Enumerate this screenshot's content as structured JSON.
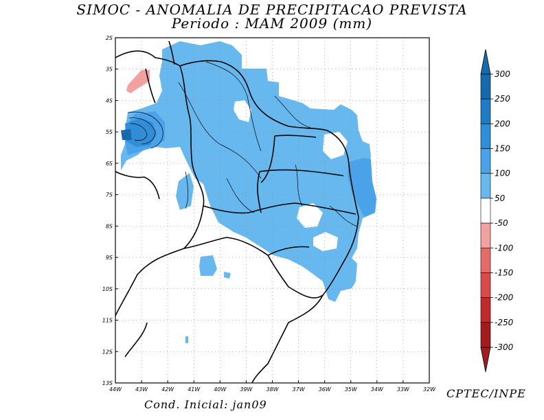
{
  "header": {
    "title": "SIMOC -  ANOMALIA DE PRECIPITACAO PREVISTA",
    "subtitle": "Periodo : MAM 2009 (mm)"
  },
  "footer": {
    "initial_condition": "Cond. Inicial: jan09",
    "credit": "CPTEC/INPE"
  },
  "chart_data": {
    "type": "heatmap",
    "title": "SIMOC -  ANOMALIA DE PRECIPITACAO PREVISTA",
    "subtitle": "Periodo : MAM 2009 (mm)",
    "x_ticks": [
      "44W",
      "43W",
      "42W",
      "41W",
      "40W",
      "39W",
      "38W",
      "37W",
      "36W",
      "35W",
      "34W",
      "33W",
      "32W"
    ],
    "y_ticks": [
      "2S",
      "3S",
      "4S",
      "5S",
      "6S",
      "7S",
      "8S",
      "9S",
      "10S",
      "11S",
      "12S",
      "13S"
    ],
    "xlim": [
      -44,
      -32
    ],
    "ylim": [
      -13,
      -2
    ],
    "grid": true,
    "colorbar": {
      "levels": [
        "-300",
        "-250",
        "-200",
        "-150",
        "-100",
        "-50",
        "50",
        "100",
        "150",
        "200",
        "250",
        "300"
      ],
      "colors": [
        "#a01c20",
        "#c02a2a",
        "#d94a4a",
        "#e66a6a",
        "#f3a0a0",
        "#ffffff",
        "#68b8f0",
        "#4aa3e8",
        "#2f8ed8",
        "#1f7bc4",
        "#1769ae"
      ],
      "orientation": "vertical",
      "placement": "right"
    },
    "regions": [
      {
        "range": "50 to 100",
        "color": "#68b8f0",
        "description": "most of northeastern region"
      },
      {
        "range": "100 to 150",
        "color": "#4aa3e8",
        "description": "eastern coast and scattered zones"
      },
      {
        "range": "150 to 300",
        "color": "#1f7bc4",
        "description": "core near 43W 5S"
      },
      {
        "range": "-100 to -50",
        "color": "#f3a0a0",
        "description": "small patch near 43W 3S"
      }
    ]
  }
}
